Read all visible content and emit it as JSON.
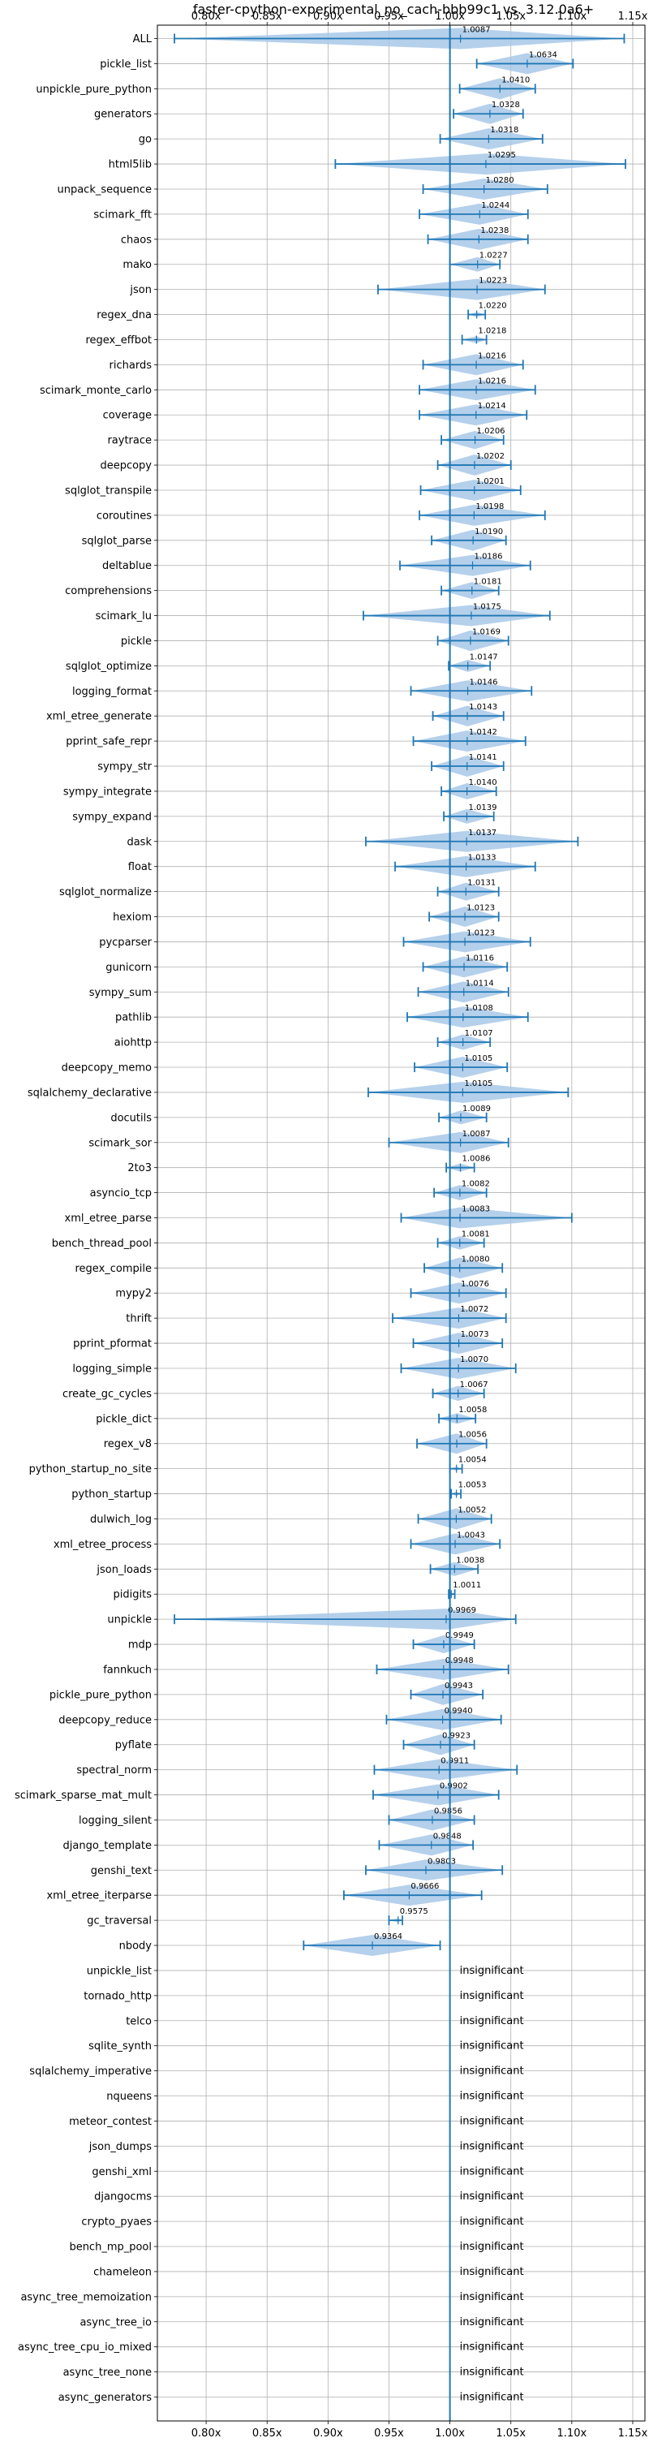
{
  "chart_data": {
    "type": "violin",
    "title": "faster-cpython-experimental_no_cach-bbb99c1 vs. 3.12.0a6+",
    "xlim": [
      0.76,
      1.16
    ],
    "x_ticks": [
      0.8,
      0.85,
      0.9,
      0.95,
      1.0,
      1.05,
      1.1,
      1.15
    ],
    "x_tick_labels": [
      "0.80x",
      "0.85x",
      "0.90x",
      "0.95x",
      "1.00x",
      "1.05x",
      "1.10x",
      "1.15x"
    ],
    "reference": 1.0,
    "grid": true,
    "insignificant_label": "insignificant",
    "color": "#1f77b4",
    "fill_color": "#a8c8e8",
    "benchmarks": [
      {
        "name": "ALL",
        "value": 1.0087,
        "label": "1.0087",
        "min": 0.774,
        "max": 1.143
      },
      {
        "name": "pickle_list",
        "value": 1.0634,
        "label": "1.0634",
        "min": 1.022,
        "max": 1.101
      },
      {
        "name": "unpickle_pure_python",
        "value": 1.041,
        "label": "1.0410",
        "min": 1.008,
        "max": 1.07
      },
      {
        "name": "generators",
        "value": 1.0328,
        "label": "1.0328",
        "min": 1.003,
        "max": 1.06
      },
      {
        "name": "go",
        "value": 1.0318,
        "label": "1.0318",
        "min": 0.992,
        "max": 1.076
      },
      {
        "name": "html5lib",
        "value": 1.0295,
        "label": "1.0295",
        "min": 0.906,
        "max": 1.144
      },
      {
        "name": "unpack_sequence",
        "value": 1.028,
        "label": "1.0280",
        "min": 0.978,
        "max": 1.08
      },
      {
        "name": "scimark_fft",
        "value": 1.0244,
        "label": "1.0244",
        "min": 0.975,
        "max": 1.064
      },
      {
        "name": "chaos",
        "value": 1.0238,
        "label": "1.0238",
        "min": 0.982,
        "max": 1.064
      },
      {
        "name": "mako",
        "value": 1.0227,
        "label": "1.0227",
        "min": 1.0,
        "max": 1.041
      },
      {
        "name": "json",
        "value": 1.0223,
        "label": "1.0223",
        "min": 0.941,
        "max": 1.078
      },
      {
        "name": "regex_dna",
        "value": 1.022,
        "label": "1.0220",
        "min": 1.015,
        "max": 1.029
      },
      {
        "name": "regex_effbot",
        "value": 1.0218,
        "label": "1.0218",
        "min": 1.01,
        "max": 1.03
      },
      {
        "name": "richards",
        "value": 1.0216,
        "label": "1.0216",
        "min": 0.978,
        "max": 1.06
      },
      {
        "name": "scimark_monte_carlo",
        "value": 1.0216,
        "label": "1.0216",
        "min": 0.975,
        "max": 1.07
      },
      {
        "name": "coverage",
        "value": 1.0214,
        "label": "1.0214",
        "min": 0.975,
        "max": 1.063
      },
      {
        "name": "raytrace",
        "value": 1.0206,
        "label": "1.0206",
        "min": 0.993,
        "max": 1.044
      },
      {
        "name": "deepcopy",
        "value": 1.0202,
        "label": "1.0202",
        "min": 0.99,
        "max": 1.05
      },
      {
        "name": "sqlglot_transpile",
        "value": 1.0201,
        "label": "1.0201",
        "min": 0.976,
        "max": 1.058
      },
      {
        "name": "coroutines",
        "value": 1.0198,
        "label": "1.0198",
        "min": 0.975,
        "max": 1.078
      },
      {
        "name": "sqlglot_parse",
        "value": 1.019,
        "label": "1.0190",
        "min": 0.985,
        "max": 1.046
      },
      {
        "name": "deltablue",
        "value": 1.0186,
        "label": "1.0186",
        "min": 0.959,
        "max": 1.066
      },
      {
        "name": "comprehensions",
        "value": 1.0181,
        "label": "1.0181",
        "min": 0.993,
        "max": 1.04
      },
      {
        "name": "scimark_lu",
        "value": 1.0175,
        "label": "1.0175",
        "min": 0.929,
        "max": 1.082
      },
      {
        "name": "pickle",
        "value": 1.0169,
        "label": "1.0169",
        "min": 0.99,
        "max": 1.048
      },
      {
        "name": "sqlglot_optimize",
        "value": 1.0147,
        "label": "1.0147",
        "min": 0.999,
        "max": 1.033
      },
      {
        "name": "logging_format",
        "value": 1.0146,
        "label": "1.0146",
        "min": 0.968,
        "max": 1.067
      },
      {
        "name": "xml_etree_generate",
        "value": 1.0143,
        "label": "1.0143",
        "min": 0.986,
        "max": 1.044
      },
      {
        "name": "pprint_safe_repr",
        "value": 1.0142,
        "label": "1.0142",
        "min": 0.97,
        "max": 1.062
      },
      {
        "name": "sympy_str",
        "value": 1.0141,
        "label": "1.0141",
        "min": 0.985,
        "max": 1.044
      },
      {
        "name": "sympy_integrate",
        "value": 1.014,
        "label": "1.0140",
        "min": 0.993,
        "max": 1.038
      },
      {
        "name": "sympy_expand",
        "value": 1.0139,
        "label": "1.0139",
        "min": 0.995,
        "max": 1.036
      },
      {
        "name": "dask",
        "value": 1.0137,
        "label": "1.0137",
        "min": 0.931,
        "max": 1.105
      },
      {
        "name": "float",
        "value": 1.0133,
        "label": "1.0133",
        "min": 0.955,
        "max": 1.07
      },
      {
        "name": "sqlglot_normalize",
        "value": 1.0131,
        "label": "1.0131",
        "min": 0.99,
        "max": 1.04
      },
      {
        "name": "hexiom",
        "value": 1.0123,
        "label": "1.0123",
        "min": 0.983,
        "max": 1.04
      },
      {
        "name": "pycparser",
        "value": 1.0123,
        "label": "1.0123",
        "min": 0.962,
        "max": 1.066
      },
      {
        "name": "gunicorn",
        "value": 1.0116,
        "label": "1.0116",
        "min": 0.978,
        "max": 1.047
      },
      {
        "name": "sympy_sum",
        "value": 1.0114,
        "label": "1.0114",
        "min": 0.974,
        "max": 1.048
      },
      {
        "name": "pathlib",
        "value": 1.0108,
        "label": "1.0108",
        "min": 0.965,
        "max": 1.064
      },
      {
        "name": "aiohttp",
        "value": 1.0107,
        "label": "1.0107",
        "min": 0.99,
        "max": 1.033
      },
      {
        "name": "deepcopy_memo",
        "value": 1.0105,
        "label": "1.0105",
        "min": 0.971,
        "max": 1.047
      },
      {
        "name": "sqlalchemy_declarative",
        "value": 1.0105,
        "label": "1.0105",
        "min": 0.933,
        "max": 1.097
      },
      {
        "name": "docutils",
        "value": 1.0089,
        "label": "1.0089",
        "min": 0.991,
        "max": 1.03
      },
      {
        "name": "scimark_sor",
        "value": 1.0087,
        "label": "1.0087",
        "min": 0.95,
        "max": 1.048
      },
      {
        "name": "2to3",
        "value": 1.0086,
        "label": "1.0086",
        "min": 0.997,
        "max": 1.02
      },
      {
        "name": "asyncio_tcp",
        "value": 1.0082,
        "label": "1.0082",
        "min": 0.987,
        "max": 1.03
      },
      {
        "name": "xml_etree_parse",
        "value": 1.0083,
        "label": "1.0083",
        "min": 0.96,
        "max": 1.1
      },
      {
        "name": "bench_thread_pool",
        "value": 1.0081,
        "label": "1.0081",
        "min": 0.99,
        "max": 1.028
      },
      {
        "name": "regex_compile",
        "value": 1.008,
        "label": "1.0080",
        "min": 0.979,
        "max": 1.043
      },
      {
        "name": "mypy2",
        "value": 1.0076,
        "label": "1.0076",
        "min": 0.968,
        "max": 1.046
      },
      {
        "name": "thrift",
        "value": 1.0072,
        "label": "1.0072",
        "min": 0.953,
        "max": 1.046
      },
      {
        "name": "pprint_pformat",
        "value": 1.0073,
        "label": "1.0073",
        "min": 0.97,
        "max": 1.043
      },
      {
        "name": "logging_simple",
        "value": 1.007,
        "label": "1.0070",
        "min": 0.96,
        "max": 1.054
      },
      {
        "name": "create_gc_cycles",
        "value": 1.0067,
        "label": "1.0067",
        "min": 0.986,
        "max": 1.028
      },
      {
        "name": "pickle_dict",
        "value": 1.0058,
        "label": "1.0058",
        "min": 0.991,
        "max": 1.021
      },
      {
        "name": "regex_v8",
        "value": 1.0056,
        "label": "1.0056",
        "min": 0.973,
        "max": 1.03
      },
      {
        "name": "python_startup_no_site",
        "value": 1.0054,
        "label": "1.0054",
        "min": 1.0,
        "max": 1.01
      },
      {
        "name": "python_startup",
        "value": 1.0053,
        "label": "1.0053",
        "min": 1.001,
        "max": 1.009
      },
      {
        "name": "dulwich_log",
        "value": 1.0052,
        "label": "1.0052",
        "min": 0.974,
        "max": 1.034
      },
      {
        "name": "xml_etree_process",
        "value": 1.0043,
        "label": "1.0043",
        "min": 0.968,
        "max": 1.041
      },
      {
        "name": "json_loads",
        "value": 1.0038,
        "label": "1.0038",
        "min": 0.984,
        "max": 1.023
      },
      {
        "name": "pidigits",
        "value": 1.0011,
        "label": "1.0011",
        "min": 0.999,
        "max": 1.004
      },
      {
        "name": "unpickle",
        "value": 0.9969,
        "label": "0.9969",
        "min": 0.774,
        "max": 1.054
      },
      {
        "name": "mdp",
        "value": 0.9949,
        "label": "0.9949",
        "min": 0.97,
        "max": 1.02
      },
      {
        "name": "fannkuch",
        "value": 0.9948,
        "label": "0.9948",
        "min": 0.94,
        "max": 1.048
      },
      {
        "name": "pickle_pure_python",
        "value": 0.9943,
        "label": "0.9943",
        "min": 0.968,
        "max": 1.027
      },
      {
        "name": "deepcopy_reduce",
        "value": 0.994,
        "label": "0.9940",
        "min": 0.948,
        "max": 1.042
      },
      {
        "name": "pyflate",
        "value": 0.9923,
        "label": "0.9923",
        "min": 0.962,
        "max": 1.02
      },
      {
        "name": "spectral_norm",
        "value": 0.9911,
        "label": "0.9911",
        "min": 0.938,
        "max": 1.055
      },
      {
        "name": "scimark_sparse_mat_mult",
        "value": 0.9902,
        "label": "0.9902",
        "min": 0.937,
        "max": 1.04
      },
      {
        "name": "logging_silent",
        "value": 0.9856,
        "label": "0.9856",
        "min": 0.95,
        "max": 1.02
      },
      {
        "name": "django_template",
        "value": 0.9848,
        "label": "0.9848",
        "min": 0.942,
        "max": 1.019
      },
      {
        "name": "genshi_text",
        "value": 0.9803,
        "label": "0.9803",
        "min": 0.931,
        "max": 1.043
      },
      {
        "name": "xml_etree_iterparse",
        "value": 0.9666,
        "label": "0.9666",
        "min": 0.913,
        "max": 1.026
      },
      {
        "name": "gc_traversal",
        "value": 0.9575,
        "label": "0.9575",
        "min": 0.95,
        "max": 0.961
      },
      {
        "name": "nbody",
        "value": 0.9364,
        "label": "0.9364",
        "min": 0.88,
        "max": 0.992
      },
      {
        "name": "unpickle_list",
        "value": null,
        "label": "insignificant"
      },
      {
        "name": "tornado_http",
        "value": null,
        "label": "insignificant"
      },
      {
        "name": "telco",
        "value": null,
        "label": "insignificant"
      },
      {
        "name": "sqlite_synth",
        "value": null,
        "label": "insignificant"
      },
      {
        "name": "sqlalchemy_imperative",
        "value": null,
        "label": "insignificant"
      },
      {
        "name": "nqueens",
        "value": null,
        "label": "insignificant"
      },
      {
        "name": "meteor_contest",
        "value": null,
        "label": "insignificant"
      },
      {
        "name": "json_dumps",
        "value": null,
        "label": "insignificant"
      },
      {
        "name": "genshi_xml",
        "value": null,
        "label": "insignificant"
      },
      {
        "name": "djangocms",
        "value": null,
        "label": "insignificant"
      },
      {
        "name": "crypto_pyaes",
        "value": null,
        "label": "insignificant"
      },
      {
        "name": "bench_mp_pool",
        "value": null,
        "label": "insignificant"
      },
      {
        "name": "chameleon",
        "value": null,
        "label": "insignificant"
      },
      {
        "name": "async_tree_memoization",
        "value": null,
        "label": "insignificant"
      },
      {
        "name": "async_tree_io",
        "value": null,
        "label": "insignificant"
      },
      {
        "name": "async_tree_cpu_io_mixed",
        "value": null,
        "label": "insignificant"
      },
      {
        "name": "async_tree_none",
        "value": null,
        "label": "insignificant"
      },
      {
        "name": "async_generators",
        "value": null,
        "label": "insignificant"
      }
    ]
  }
}
